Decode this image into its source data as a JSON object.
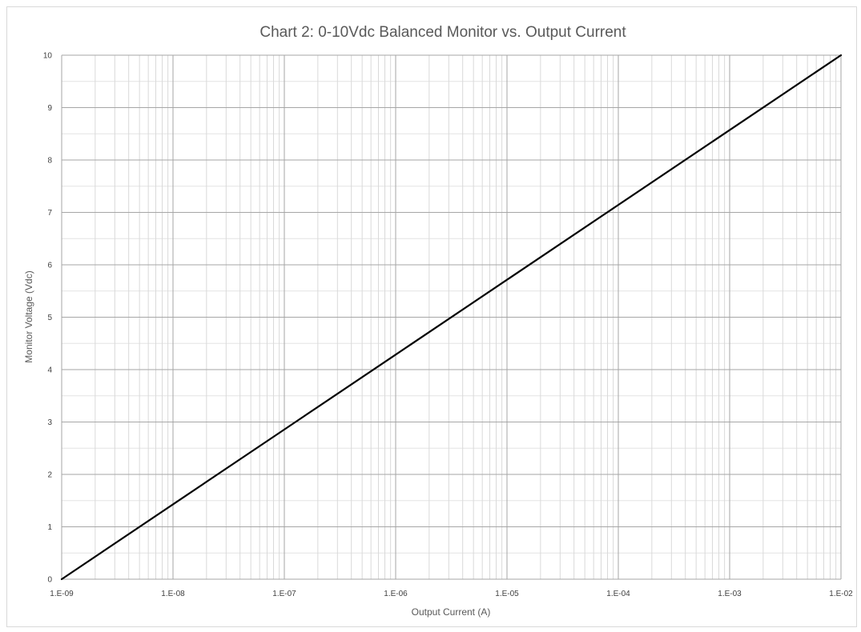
{
  "chart_data": {
    "type": "line",
    "title": "Chart 2: 0-10Vdc Balanced Monitor vs. Output Current",
    "xlabel": "Output Current (A)",
    "ylabel": "Monitor Voltage (Vdc)",
    "x_scale": "log",
    "xlim": [
      1e-09,
      0.01
    ],
    "ylim": [
      0,
      10
    ],
    "x_tick_labels": [
      "1.E-09",
      "1.E-08",
      "1.E-07",
      "1.E-06",
      "1.E-05",
      "1.E-04",
      "1.E-03",
      "1.E-02"
    ],
    "y_tick_labels": [
      "0",
      "1",
      "2",
      "3",
      "4",
      "5",
      "6",
      "7",
      "8",
      "9",
      "10"
    ],
    "grid": true,
    "legend": "none",
    "series": [
      {
        "x": [
          1e-09,
          1e-08,
          1e-07,
          1e-06,
          1e-05,
          0.0001,
          0.001,
          0.01
        ],
        "y": [
          0,
          1.4286,
          2.8571,
          4.2857,
          5.7143,
          7.1429,
          8.5714,
          10
        ],
        "color": "#000000"
      }
    ]
  }
}
